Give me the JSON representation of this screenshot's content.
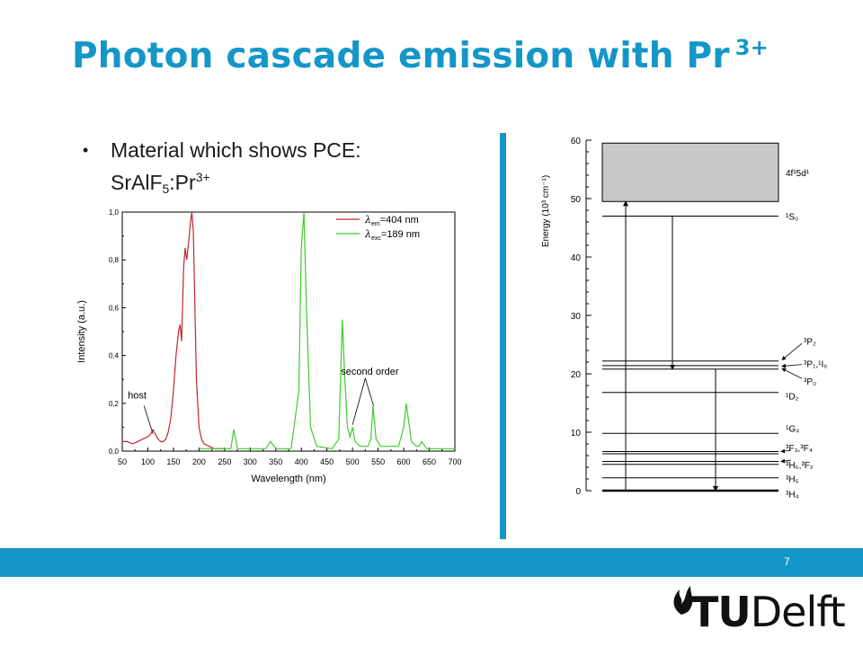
{
  "slide": {
    "title": "Photon cascade emission with Pr",
    "title_sup": "3+",
    "bullet_text": "Material which shows PCE:",
    "formula": {
      "a": "SrAlF",
      "sub": "5",
      "b": ":Pr",
      "sup": "3+"
    },
    "page_number": "7",
    "logo": {
      "prefix": "TU",
      "suffix": "Delft"
    },
    "colors": {
      "accent": "#1496c8",
      "em_series": "#c0282d",
      "exc_series": "#3ccc2a"
    }
  },
  "chart_data": [
    {
      "type": "line",
      "title": "",
      "xlabel": "Wavelength (nm)",
      "ylabel": "Intensity (a.u.)",
      "xlim": [
        50,
        700
      ],
      "ylim": [
        0,
        1.0
      ],
      "xticks": [
        "50",
        "100",
        "150",
        "200",
        "250",
        "300",
        "350",
        "400",
        "450",
        "500",
        "550",
        "600",
        "650",
        "700"
      ],
      "yticks": [
        "0,0",
        "0,2",
        "0,4",
        "0,6",
        "0,8",
        "1,0"
      ],
      "legend": {
        "position": "top-right",
        "entries": [
          {
            "symbol": "λ",
            "sub": "em",
            "text": "=404 nm",
            "color": "#c0282d"
          },
          {
            "symbol": "λ",
            "sub": "exc",
            "text": "=189 nm",
            "color": "#3ccc2a"
          }
        ]
      },
      "annotations": [
        {
          "text": "host",
          "x": 110,
          "y": 0.08
        },
        {
          "text": "second order",
          "points": [
            [
              500,
              0.11
            ],
            [
              541,
              0.19
            ]
          ]
        }
      ],
      "series": [
        {
          "name": "λem=404 nm",
          "color": "#c0282d",
          "x": [
            50,
            60,
            70,
            80,
            90,
            100,
            105,
            110,
            115,
            120,
            125,
            130,
            135,
            140,
            145,
            150,
            155,
            160,
            163,
            166,
            170,
            173,
            176,
            180,
            183,
            186,
            189,
            192,
            195,
            200,
            205,
            210,
            220,
            230,
            240,
            250
          ],
          "y": [
            0.04,
            0.04,
            0.03,
            0.04,
            0.05,
            0.06,
            0.07,
            0.09,
            0.07,
            0.05,
            0.04,
            0.04,
            0.05,
            0.08,
            0.14,
            0.25,
            0.4,
            0.5,
            0.53,
            0.46,
            0.77,
            0.85,
            0.8,
            0.88,
            0.95,
            1.0,
            0.92,
            0.6,
            0.3,
            0.1,
            0.05,
            0.03,
            0.02,
            0.01,
            0.01,
            0.01
          ]
        },
        {
          "name": "λexc=189 nm",
          "color": "#3ccc2a",
          "x": [
            200,
            250,
            262,
            268,
            275,
            290,
            330,
            340,
            350,
            380,
            395,
            400,
            405,
            410,
            418,
            430,
            460,
            473,
            480,
            485,
            490,
            495,
            500,
            505,
            515,
            530,
            536,
            540,
            546,
            555,
            590,
            600,
            605,
            610,
            615,
            625,
            630,
            635,
            645,
            660,
            700
          ],
          "y": [
            0.01,
            0.01,
            0.01,
            0.09,
            0.01,
            0.01,
            0.01,
            0.04,
            0.01,
            0.01,
            0.25,
            0.85,
            1.0,
            0.6,
            0.1,
            0.02,
            0.01,
            0.05,
            0.55,
            0.3,
            0.1,
            0.06,
            0.1,
            0.04,
            0.02,
            0.02,
            0.05,
            0.19,
            0.05,
            0.02,
            0.02,
            0.1,
            0.2,
            0.12,
            0.04,
            0.02,
            0.02,
            0.04,
            0.01,
            0.01,
            0.01
          ]
        }
      ]
    },
    {
      "type": "energy-level-diagram",
      "ylabel": "Energy (10³ cm⁻¹)",
      "ylim": [
        0,
        60
      ],
      "yticks": [
        "0",
        "10",
        "20",
        "30",
        "40",
        "50",
        "60"
      ],
      "band": {
        "label": "4f¹5d¹",
        "from": 49.5,
        "to": 59.5
      },
      "levels": [
        {
          "label": "¹S₀",
          "energy": 47
        },
        {
          "label": "³P₂",
          "energy": 22.2
        },
        {
          "label": "³P₁,¹I₆",
          "energy": 21.4
        },
        {
          "label": "³P₀",
          "energy": 20.8
        },
        {
          "label": "¹D₂",
          "energy": 16.8
        },
        {
          "label": "¹G₄",
          "energy": 9.8
        },
        {
          "label": "³F₃,³F₄",
          "energy": 6.7
        },
        {
          "label": "³H₆,³F₂",
          "energy": 5
        },
        {
          "label": "³H₅",
          "energy": 2.2
        },
        {
          "label": "³H₄",
          "energy": 0
        }
      ],
      "extra_levels": [
        6.3,
        4.5
      ],
      "transitions": [
        {
          "from": 0,
          "to": 49.5,
          "direction": "up"
        },
        {
          "from": 47,
          "to": 20.8,
          "direction": "down"
        },
        {
          "from": 20.8,
          "to": 0,
          "direction": "down"
        }
      ]
    }
  ]
}
